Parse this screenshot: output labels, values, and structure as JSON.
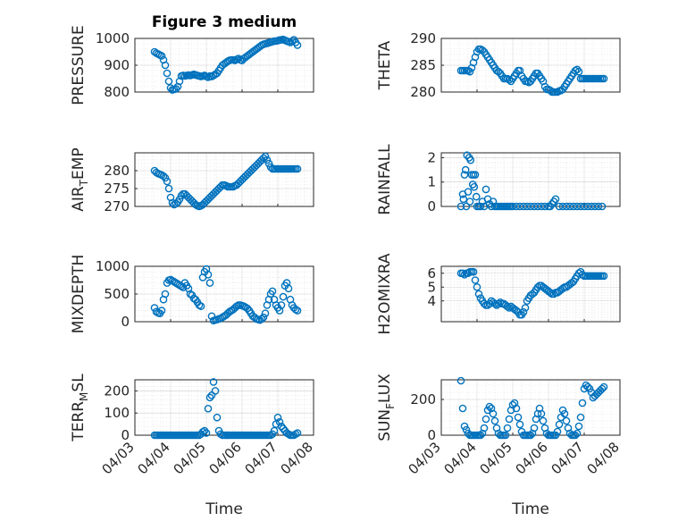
{
  "title": "Figure 3 medium",
  "xlabel": "Time",
  "colors": {
    "marker": "#0072BD",
    "axes": "#262626"
  },
  "x_tick_labels": [
    "04/03",
    "04/04",
    "04/05",
    "04/06",
    "04/07",
    "04/08"
  ],
  "chart_data": [
    {
      "type": "scatter",
      "ylabel": "PRESSURE",
      "ylim": [
        800,
        1000
      ],
      "yticks": [
        800,
        900,
        1000
      ],
      "x": [
        3.55,
        3.6,
        3.65,
        3.7,
        3.75,
        3.8,
        3.85,
        3.9,
        3.95,
        4.0,
        4.05,
        4.1,
        4.15,
        4.2,
        4.25,
        4.3,
        4.35,
        4.4,
        4.45,
        4.5,
        4.55,
        4.6,
        4.65,
        4.7,
        4.75,
        4.8,
        4.85,
        4.9,
        4.95,
        5.0,
        5.05,
        5.1,
        5.15,
        5.2,
        5.25,
        5.3,
        5.35,
        5.4,
        5.45,
        5.5,
        5.55,
        5.6,
        5.65,
        5.7,
        5.75,
        5.8,
        5.85,
        5.9,
        5.95,
        6.0,
        6.05,
        6.1,
        6.15,
        6.2,
        6.25,
        6.3,
        6.35,
        6.4,
        6.45,
        6.5,
        6.55,
        6.6,
        6.65,
        6.7,
        6.75,
        6.8,
        6.85,
        6.9,
        6.95,
        7.0,
        7.05,
        7.1,
        7.15,
        7.2,
        7.25,
        7.3,
        7.35,
        7.4,
        7.45,
        7.5,
        7.55
      ],
      "y": [
        950,
        945,
        942,
        938,
        935,
        920,
        900,
        870,
        840,
        815,
        808,
        810,
        812,
        820,
        840,
        860,
        862,
        860,
        862,
        863,
        862,
        864,
        866,
        864,
        862,
        860,
        858,
        860,
        862,
        858,
        855,
        860,
        858,
        862,
        866,
        870,
        880,
        890,
        900,
        905,
        910,
        915,
        918,
        920,
        920,
        918,
        922,
        925,
        920,
        918,
        925,
        930,
        935,
        940,
        945,
        950,
        955,
        960,
        965,
        970,
        975,
        978,
        980,
        982,
        984,
        986,
        988,
        990,
        990,
        992,
        994,
        995,
        996,
        993,
        990,
        988,
        985,
        990,
        995,
        985,
        975
      ]
    },
    {
      "type": "scatter",
      "ylabel": "THETA",
      "ylim": [
        280,
        290
      ],
      "yticks": [
        280,
        285,
        290
      ],
      "x": [
        3.55,
        3.6,
        3.65,
        3.7,
        3.75,
        3.8,
        3.85,
        3.9,
        3.95,
        4.0,
        4.05,
        4.1,
        4.15,
        4.2,
        4.25,
        4.3,
        4.35,
        4.4,
        4.45,
        4.5,
        4.55,
        4.6,
        4.65,
        4.7,
        4.75,
        4.8,
        4.85,
        4.9,
        4.95,
        5.0,
        5.05,
        5.1,
        5.15,
        5.2,
        5.25,
        5.3,
        5.35,
        5.4,
        5.45,
        5.5,
        5.55,
        5.6,
        5.65,
        5.7,
        5.75,
        5.8,
        5.85,
        5.9,
        5.95,
        6.0,
        6.05,
        6.1,
        6.15,
        6.2,
        6.25,
        6.3,
        6.35,
        6.4,
        6.45,
        6.5,
        6.55,
        6.6,
        6.65,
        6.7,
        6.75,
        6.8,
        6.85,
        6.9,
        6.95,
        7.0,
        7.05,
        7.1,
        7.15,
        7.2,
        7.25,
        7.3,
        7.35,
        7.4,
        7.45,
        7.5,
        7.55
      ],
      "y": [
        284,
        284,
        284,
        284,
        284,
        283.8,
        284.5,
        285.5,
        286.5,
        287.5,
        288,
        288,
        287.8,
        287.5,
        287,
        286.5,
        286,
        285.5,
        285,
        284.5,
        284,
        283.8,
        283.5,
        283,
        282.5,
        282.5,
        282.5,
        282.3,
        282,
        282.5,
        283,
        283.5,
        284,
        284,
        283,
        282.5,
        282,
        282,
        281.8,
        282,
        282.5,
        283,
        283.5,
        283.5,
        283,
        282.5,
        282,
        281,
        280.5,
        280.5,
        280.3,
        280,
        280,
        280,
        280,
        280.2,
        280.3,
        280.5,
        281,
        281.5,
        282,
        282.5,
        283,
        283.5,
        284,
        284.2,
        283.8,
        282.5,
        282.5,
        282.5,
        282.5,
        282.5,
        282.5,
        282.5,
        282.5,
        282.5,
        282.5,
        282.5,
        282.5,
        282.5,
        282.5
      ]
    },
    {
      "type": "scatter",
      "ylabel": "AIR_TEMP",
      "ylim": [
        270,
        285
      ],
      "yticks": [
        270,
        275,
        280
      ],
      "x": [
        3.55,
        3.6,
        3.65,
        3.7,
        3.75,
        3.8,
        3.85,
        3.9,
        3.95,
        4.0,
        4.05,
        4.1,
        4.15,
        4.2,
        4.25,
        4.3,
        4.35,
        4.4,
        4.45,
        4.5,
        4.55,
        4.6,
        4.65,
        4.7,
        4.75,
        4.8,
        4.85,
        4.9,
        4.95,
        5.0,
        5.05,
        5.1,
        5.15,
        5.2,
        5.25,
        5.3,
        5.35,
        5.4,
        5.45,
        5.5,
        5.55,
        5.6,
        5.65,
        5.7,
        5.75,
        5.8,
        5.85,
        5.9,
        5.95,
        6.0,
        6.05,
        6.1,
        6.15,
        6.2,
        6.25,
        6.3,
        6.35,
        6.4,
        6.45,
        6.5,
        6.55,
        6.6,
        6.65,
        6.7,
        6.75,
        6.8,
        6.85,
        6.9,
        6.95,
        7.0,
        7.05,
        7.1,
        7.15,
        7.2,
        7.25,
        7.3,
        7.35,
        7.4,
        7.45,
        7.5,
        7.55
      ],
      "y": [
        280,
        279.5,
        279.2,
        279,
        278.8,
        278.5,
        278,
        277,
        275,
        272.5,
        271,
        270.5,
        270.8,
        271.2,
        272,
        273,
        273.5,
        273.5,
        273,
        272.5,
        272,
        271.5,
        271,
        270.5,
        270.2,
        270,
        270.2,
        270.5,
        271,
        271.5,
        272,
        272.5,
        273,
        273.5,
        274,
        274.5,
        275,
        275.5,
        276,
        276,
        275.8,
        275.5,
        275.5,
        275.5,
        275.5,
        275.8,
        276,
        276.5,
        277,
        277.5,
        278,
        278.5,
        279,
        279.5,
        280,
        280.5,
        281,
        281.5,
        282,
        282.5,
        283,
        283.5,
        284,
        283,
        282,
        281,
        280.5,
        280.5,
        280.5,
        280.5,
        280.5,
        280.5,
        280.5,
        280.5,
        280.5,
        280.5,
        280.5,
        280.5,
        280.5,
        280.5,
        280.5
      ]
    },
    {
      "type": "scatter",
      "ylabel": "RAINFALL",
      "ylim": [
        0,
        2.2
      ],
      "yticks": [
        0,
        1,
        2
      ],
      "x": [
        3.55,
        3.6,
        3.62,
        3.65,
        3.68,
        3.7,
        3.72,
        3.75,
        3.78,
        3.8,
        3.82,
        3.85,
        3.88,
        3.9,
        3.92,
        3.95,
        3.98,
        4.0,
        4.05,
        4.1,
        4.15,
        4.2,
        4.25,
        4.3,
        4.35,
        4.4,
        4.45,
        4.5,
        4.55,
        4.6,
        4.65,
        4.7,
        4.75,
        4.8,
        4.85,
        4.9,
        4.95,
        5.0,
        5.1,
        5.2,
        5.3,
        5.4,
        5.5,
        5.6,
        5.7,
        5.8,
        5.9,
        6.0,
        6.05,
        6.1,
        6.15,
        6.2,
        6.3,
        6.4,
        6.5,
        6.6,
        6.7,
        6.8,
        6.9,
        7.0,
        7.1,
        7.2,
        7.3,
        7.4,
        7.5
      ],
      "y": [
        0,
        0.5,
        0.3,
        1.3,
        1.5,
        0,
        2.1,
        0.6,
        2.0,
        0.2,
        1.9,
        1.3,
        0.9,
        1.3,
        0.8,
        1.3,
        0.4,
        0,
        0,
        0,
        0.2,
        0,
        0.7,
        0.3,
        0.1,
        0,
        0.2,
        0,
        0,
        0,
        0,
        0,
        0,
        0,
        0,
        0,
        0,
        0,
        0,
        0,
        0,
        0,
        0,
        0,
        0,
        0,
        0,
        0,
        0,
        0.1,
        0.2,
        0.3,
        0,
        0,
        0,
        0,
        0,
        0,
        0,
        0,
        0,
        0,
        0,
        0,
        0
      ]
    },
    {
      "type": "scatter",
      "ylabel": "MIXDEPTH",
      "ylim": [
        0,
        1000
      ],
      "yticks": [
        0,
        500,
        1000
      ],
      "x": [
        3.55,
        3.6,
        3.65,
        3.7,
        3.75,
        3.8,
        3.85,
        3.9,
        3.95,
        4.0,
        4.05,
        4.1,
        4.15,
        4.2,
        4.25,
        4.3,
        4.35,
        4.4,
        4.45,
        4.5,
        4.55,
        4.6,
        4.65,
        4.7,
        4.75,
        4.8,
        4.85,
        4.9,
        4.95,
        5.0,
        5.05,
        5.1,
        5.15,
        5.2,
        5.25,
        5.3,
        5.35,
        5.4,
        5.45,
        5.5,
        5.55,
        5.6,
        5.65,
        5.7,
        5.75,
        5.8,
        5.85,
        5.9,
        5.95,
        6.0,
        6.05,
        6.1,
        6.15,
        6.2,
        6.25,
        6.3,
        6.35,
        6.4,
        6.45,
        6.5,
        6.55,
        6.6,
        6.65,
        6.7,
        6.75,
        6.8,
        6.85,
        6.9,
        6.95,
        7.0,
        7.05,
        7.1,
        7.15,
        7.2,
        7.25,
        7.3,
        7.35,
        7.4,
        7.45,
        7.5,
        7.55
      ],
      "y": [
        250,
        180,
        160,
        150,
        200,
        400,
        500,
        700,
        750,
        760,
        740,
        720,
        700,
        680,
        660,
        640,
        620,
        700,
        650,
        600,
        500,
        480,
        420,
        400,
        350,
        300,
        280,
        800,
        900,
        950,
        850,
        700,
        100,
        20,
        30,
        40,
        50,
        60,
        80,
        100,
        120,
        150,
        180,
        200,
        220,
        250,
        280,
        300,
        300,
        290,
        280,
        260,
        240,
        200,
        150,
        100,
        80,
        50,
        40,
        30,
        50,
        80,
        150,
        300,
        400,
        500,
        550,
        400,
        300,
        250,
        200,
        300,
        450,
        650,
        700,
        600,
        400,
        300,
        250,
        220,
        200
      ]
    },
    {
      "type": "scatter",
      "ylabel": "H2OMIXRA",
      "ylim": [
        2.5,
        6.5
      ],
      "yticks": [
        4,
        5,
        6
      ],
      "x": [
        3.55,
        3.6,
        3.65,
        3.7,
        3.75,
        3.8,
        3.85,
        3.9,
        3.95,
        4.0,
        4.05,
        4.1,
        4.15,
        4.2,
        4.25,
        4.3,
        4.35,
        4.4,
        4.45,
        4.5,
        4.55,
        4.6,
        4.65,
        4.7,
        4.75,
        4.8,
        4.85,
        4.9,
        4.95,
        5.0,
        5.05,
        5.1,
        5.15,
        5.2,
        5.25,
        5.3,
        5.35,
        5.4,
        5.45,
        5.5,
        5.55,
        5.6,
        5.65,
        5.7,
        5.75,
        5.8,
        5.85,
        5.9,
        5.95,
        6.0,
        6.05,
        6.1,
        6.15,
        6.2,
        6.25,
        6.3,
        6.35,
        6.4,
        6.45,
        6.5,
        6.55,
        6.6,
        6.65,
        6.7,
        6.75,
        6.8,
        6.85,
        6.9,
        6.95,
        7.0,
        7.05,
        7.1,
        7.15,
        7.2,
        7.25,
        7.3,
        7.35,
        7.4,
        7.45,
        7.5,
        7.55
      ],
      "y": [
        6.0,
        6.0,
        5.9,
        6.0,
        6.0,
        6.1,
        6.1,
        6.1,
        5.5,
        5.0,
        4.5,
        4.2,
        4.0,
        3.8,
        3.7,
        3.7,
        3.8,
        4.0,
        3.9,
        3.8,
        3.7,
        3.8,
        3.9,
        3.8,
        3.8,
        3.7,
        3.6,
        3.5,
        3.6,
        3.5,
        3.4,
        3.3,
        3.2,
        3.0,
        3.0,
        3.2,
        3.5,
        4.0,
        4.2,
        4.4,
        4.5,
        4.6,
        4.8,
        5.0,
        5.1,
        5.1,
        5.0,
        4.9,
        4.8,
        4.7,
        4.6,
        4.5,
        4.5,
        4.6,
        4.6,
        4.7,
        4.8,
        4.9,
        5.0,
        5.0,
        5.1,
        5.2,
        5.3,
        5.4,
        5.6,
        5.8,
        6.0,
        6.1,
        5.9,
        5.8,
        5.8,
        5.8,
        5.8,
        5.8,
        5.8,
        5.8,
        5.8,
        5.8,
        5.8,
        5.8,
        5.8
      ]
    },
    {
      "type": "scatter",
      "ylabel": "TERR_MSL",
      "ylim": [
        0,
        250
      ],
      "yticks": [
        0,
        100,
        200
      ],
      "x": [
        3.55,
        3.6,
        3.65,
        3.7,
        3.75,
        3.8,
        3.85,
        3.9,
        3.95,
        4.0,
        4.05,
        4.1,
        4.15,
        4.2,
        4.25,
        4.3,
        4.35,
        4.4,
        4.45,
        4.5,
        4.55,
        4.6,
        4.65,
        4.7,
        4.75,
        4.8,
        4.85,
        4.9,
        4.95,
        5.0,
        5.05,
        5.1,
        5.15,
        5.2,
        5.25,
        5.3,
        5.35,
        5.4,
        5.45,
        5.5,
        5.55,
        5.6,
        5.65,
        5.7,
        5.75,
        5.8,
        5.85,
        5.9,
        5.95,
        6.0,
        6.05,
        6.1,
        6.15,
        6.2,
        6.25,
        6.3,
        6.35,
        6.4,
        6.45,
        6.5,
        6.55,
        6.6,
        6.65,
        6.7,
        6.75,
        6.8,
        6.85,
        6.9,
        6.95,
        7.0,
        7.05,
        7.1,
        7.15,
        7.2,
        7.25,
        7.3,
        7.35,
        7.4,
        7.45,
        7.5,
        7.55
      ],
      "y": [
        0,
        0,
        0,
        0,
        0,
        0,
        0,
        0,
        0,
        0,
        0,
        0,
        0,
        0,
        0,
        0,
        0,
        0,
        0,
        0,
        0,
        0,
        0,
        0,
        0,
        0,
        5,
        15,
        20,
        10,
        120,
        170,
        180,
        240,
        200,
        80,
        20,
        5,
        0,
        0,
        0,
        0,
        0,
        0,
        0,
        0,
        0,
        0,
        0,
        0,
        0,
        0,
        0,
        0,
        0,
        0,
        0,
        0,
        0,
        0,
        0,
        0,
        0,
        0,
        0,
        0,
        5,
        20,
        50,
        80,
        60,
        40,
        30,
        20,
        10,
        5,
        0,
        0,
        0,
        5,
        10
      ]
    },
    {
      "type": "scatter",
      "ylabel": "SUN_FLUX",
      "ylim": [
        0,
        310
      ],
      "yticks": [
        0,
        200
      ],
      "x": [
        3.55,
        3.6,
        3.65,
        3.7,
        3.75,
        3.8,
        3.85,
        3.9,
        3.95,
        4.0,
        4.05,
        4.1,
        4.15,
        4.2,
        4.25,
        4.3,
        4.35,
        4.4,
        4.45,
        4.5,
        4.55,
        4.6,
        4.65,
        4.7,
        4.75,
        4.8,
        4.85,
        4.9,
        4.95,
        5.0,
        5.05,
        5.1,
        5.15,
        5.2,
        5.25,
        5.3,
        5.35,
        5.4,
        5.45,
        5.5,
        5.55,
        5.6,
        5.65,
        5.7,
        5.75,
        5.8,
        5.85,
        5.9,
        5.95,
        6.0,
        6.05,
        6.1,
        6.15,
        6.2,
        6.25,
        6.3,
        6.35,
        6.4,
        6.45,
        6.5,
        6.55,
        6.6,
        6.65,
        6.7,
        6.75,
        6.8,
        6.85,
        6.9,
        6.95,
        7.0,
        7.05,
        7.1,
        7.15,
        7.2,
        7.25,
        7.3,
        7.35,
        7.4,
        7.45,
        7.5,
        7.55
      ],
      "y": [
        305,
        150,
        50,
        30,
        10,
        0,
        0,
        0,
        0,
        0,
        0,
        0,
        10,
        40,
        90,
        140,
        160,
        150,
        120,
        80,
        40,
        10,
        0,
        0,
        0,
        0,
        40,
        90,
        140,
        170,
        180,
        150,
        100,
        60,
        20,
        0,
        0,
        0,
        0,
        0,
        10,
        40,
        90,
        120,
        150,
        120,
        80,
        40,
        10,
        0,
        0,
        0,
        0,
        0,
        20,
        60,
        100,
        140,
        120,
        80,
        40,
        10,
        0,
        0,
        0,
        10,
        50,
        100,
        180,
        260,
        280,
        270,
        260,
        240,
        210,
        220,
        230,
        240,
        250,
        260,
        270
      ]
    }
  ]
}
